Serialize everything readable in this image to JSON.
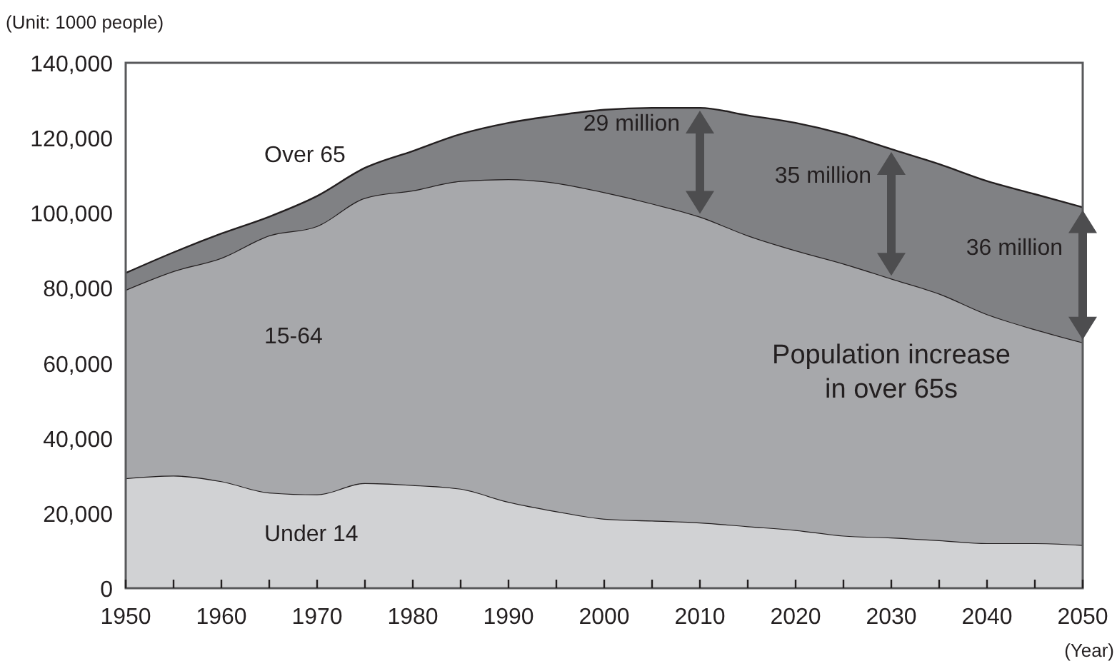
{
  "chart_data": {
    "type": "area",
    "stacked": true,
    "ylabel": "(Unit: 1000 people)",
    "xlabel": "(Year)",
    "x": [
      1950,
      1955,
      1960,
      1965,
      1970,
      1975,
      1980,
      1985,
      1990,
      1995,
      2000,
      2005,
      2010,
      2015,
      2020,
      2025,
      2030,
      2035,
      2040,
      2045,
      2050
    ],
    "series": [
      {
        "name": "Under 14",
        "color": "#d1d2d4",
        "values": [
          29300,
          30000,
          28500,
          25500,
          25000,
          28000,
          27500,
          26500,
          23000,
          20500,
          18500,
          18000,
          17500,
          16500,
          15500,
          14000,
          13500,
          12800,
          12000,
          12000,
          11500
        ]
      },
      {
        "name": "15-64",
        "color": "#a7a8ab",
        "values": [
          50200,
          54500,
          59500,
          68500,
          71500,
          76000,
          78500,
          82000,
          86000,
          87500,
          87000,
          84500,
          81500,
          77500,
          74500,
          72500,
          69000,
          65700,
          61000,
          57000,
          54000
        ]
      },
      {
        "name": "Over 65",
        "color": "#808184",
        "values": [
          4500,
          5000,
          6500,
          5000,
          8000,
          8000,
          10500,
          12500,
          15000,
          18000,
          22000,
          25500,
          29000,
          32000,
          34000,
          34500,
          34500,
          34500,
          35500,
          36000,
          36000
        ]
      }
    ],
    "xlim": [
      1950,
      2050
    ],
    "xticks": [
      1950,
      {
        "value": 1955,
        "label": null
      },
      1960,
      {
        "value": 1965,
        "label": null
      },
      1970,
      {
        "value": 1975,
        "label": null
      },
      1980,
      {
        "value": 1985,
        "label": null
      },
      1990,
      {
        "value": 1995,
        "label": null
      },
      2000,
      {
        "value": 2005,
        "label": null
      },
      2010,
      {
        "value": 2015,
        "label": null
      },
      2020,
      {
        "value": 2025,
        "label": null
      },
      2030,
      {
        "value": 2035,
        "label": null
      },
      2040,
      {
        "value": 2045,
        "label": null
      },
      2050
    ],
    "ylim": [
      0,
      140000
    ],
    "yticks": [
      {
        "value": 0,
        "label": "0"
      },
      {
        "value": 20000,
        "label": "20,000"
      },
      {
        "value": 40000,
        "label": "40,000"
      },
      {
        "value": 60000,
        "label": "60,000"
      },
      {
        "value": 80000,
        "label": "80,000"
      },
      {
        "value": 100000,
        "label": "100,000"
      },
      {
        "value": 120000,
        "label": "120,000"
      },
      {
        "value": 140000,
        "label": "140,000"
      }
    ],
    "grid": false,
    "annotations": [
      "29 million",
      "35 million",
      "36 million",
      "Population increase\nin over 65s"
    ]
  }
}
